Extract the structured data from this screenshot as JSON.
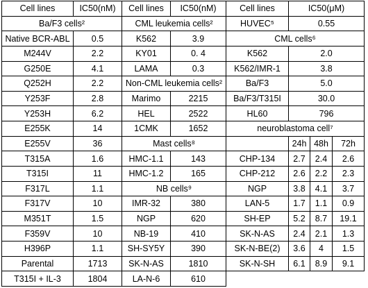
{
  "table": {
    "header": [
      "Cell lines",
      "IC50(nM)",
      "Cell lines",
      "IC50(nM)",
      "Cell lines",
      "IC50(μM)"
    ],
    "rows": [
      [
        "Ba/F3 cells²",
        "CML leukemia cells²",
        "HUVEC⁵",
        "0.55"
      ],
      [
        "Native BCR-ABL",
        "0.5",
        "K562",
        "3.9",
        "CML cells⁶"
      ],
      [
        "M244V",
        "2.2",
        "KY01",
        "0. 4",
        "K562",
        "2.0"
      ],
      [
        "G250E",
        "4.1",
        "LAMA",
        "0.3",
        "K562/IMR-1",
        "3.8"
      ],
      [
        "Q252H",
        "2.2",
        "Non-CML leukemia cells²",
        "Ba/F3",
        "5.0"
      ],
      [
        "Y253F",
        "2.8",
        "Marimo",
        "2215",
        "Ba/F3/T315I",
        "30.0"
      ],
      [
        "Y253H",
        "6.2",
        "HEL",
        "2522",
        "HL60",
        "796"
      ],
      [
        "E255K",
        "14",
        "1CMK",
        "1652",
        "neuroblastoma cell⁷"
      ],
      [
        "E255V",
        "36",
        "Mast cells⁸",
        "24h",
        "48h",
        "72h"
      ],
      [
        "T315A",
        "1.6",
        "HMC-1.1",
        "143",
        "CHP-134",
        "2.7",
        "2.4",
        "2.6"
      ],
      [
        "T315I",
        "11",
        "HMC-1.2",
        "165",
        "CHP-212",
        "2.6",
        "2.2",
        "2.3"
      ],
      [
        "F317L",
        "1.1",
        "NB cells⁹",
        "NGP",
        "3.8",
        "4.1",
        "3.7"
      ],
      [
        "F317V",
        "10",
        "IMR-32",
        "380",
        "LAN-5",
        "1.7",
        "1.1",
        "0.9"
      ],
      [
        "M351T",
        "1.5",
        "NGP",
        "620",
        "SH-EP",
        "5.2",
        "8.7",
        "19.1"
      ],
      [
        "F359V",
        "10",
        "NB-19",
        "410",
        "SK-N-AS",
        "2.4",
        "2.1",
        "1.3"
      ],
      [
        "H396P",
        "1.1",
        "SH-SY5Y",
        "390",
        "SK-N-BE(2)",
        "3.6",
        "4",
        "1.5"
      ],
      [
        "Parental",
        "1713",
        "SK-N-AS",
        "1810",
        "SK-N-SH",
        "6.1",
        "8.9",
        "9.1"
      ],
      [
        "T315I + IL-3",
        "1804",
        "LA-N-6",
        "610"
      ]
    ]
  }
}
